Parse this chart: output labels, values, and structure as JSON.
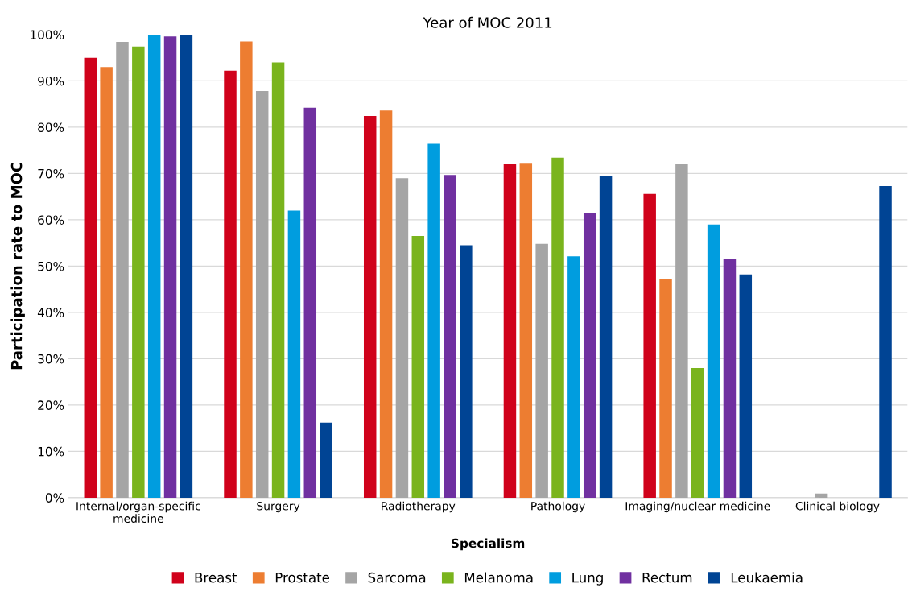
{
  "chart_data": {
    "type": "bar",
    "title": "Year of MOC 2011",
    "xlabel": "Specialism",
    "ylabel": "Participation rate to MOC",
    "categories": [
      "Internal/organ-specific\nmedicine",
      "Surgery",
      "Radiotherapy",
      "Pathology",
      "Imaging/nuclear medicine",
      "Clinical biology"
    ],
    "series": [
      {
        "name": "Breast",
        "color": "#d0021b",
        "values": [
          95,
          92.2,
          82.4,
          72,
          65.6,
          0
        ]
      },
      {
        "name": "Prostate",
        "color": "#ed7d31",
        "values": [
          93,
          98.5,
          83.6,
          72.1,
          47.3,
          0
        ]
      },
      {
        "name": "Sarcoma",
        "color": "#a5a5a5",
        "values": [
          98.4,
          87.8,
          69,
          54.8,
          72,
          0.9
        ]
      },
      {
        "name": "Melanoma",
        "color": "#7ab41d",
        "values": [
          97.4,
          94,
          56.5,
          73.4,
          28,
          0
        ]
      },
      {
        "name": "Lung",
        "color": "#009ddf",
        "values": [
          99.8,
          62,
          76.4,
          52.1,
          59,
          0
        ]
      },
      {
        "name": "Rectum",
        "color": "#7030a0",
        "values": [
          99.6,
          84.2,
          69.7,
          61.4,
          51.5,
          0
        ]
      },
      {
        "name": "Leukaemia",
        "color": "#004494",
        "values": [
          100,
          16.2,
          54.5,
          69.4,
          48.2,
          67.3
        ]
      }
    ],
    "ylim": [
      0,
      100
    ],
    "yticks": [
      {
        "value": 0,
        "label": "0%"
      },
      {
        "value": 10,
        "label": "10%"
      },
      {
        "value": 20,
        "label": "20%"
      },
      {
        "value": 30,
        "label": "30%"
      },
      {
        "value": 40,
        "label": "40%"
      },
      {
        "value": 50,
        "label": "50%"
      },
      {
        "value": 60,
        "label": "60%"
      },
      {
        "value": 70,
        "label": "70%"
      },
      {
        "value": 80,
        "label": "80%"
      },
      {
        "value": 90,
        "label": "90%"
      },
      {
        "value": 100,
        "label": "100%"
      }
    ],
    "grid": "y",
    "legend": "bottom"
  }
}
